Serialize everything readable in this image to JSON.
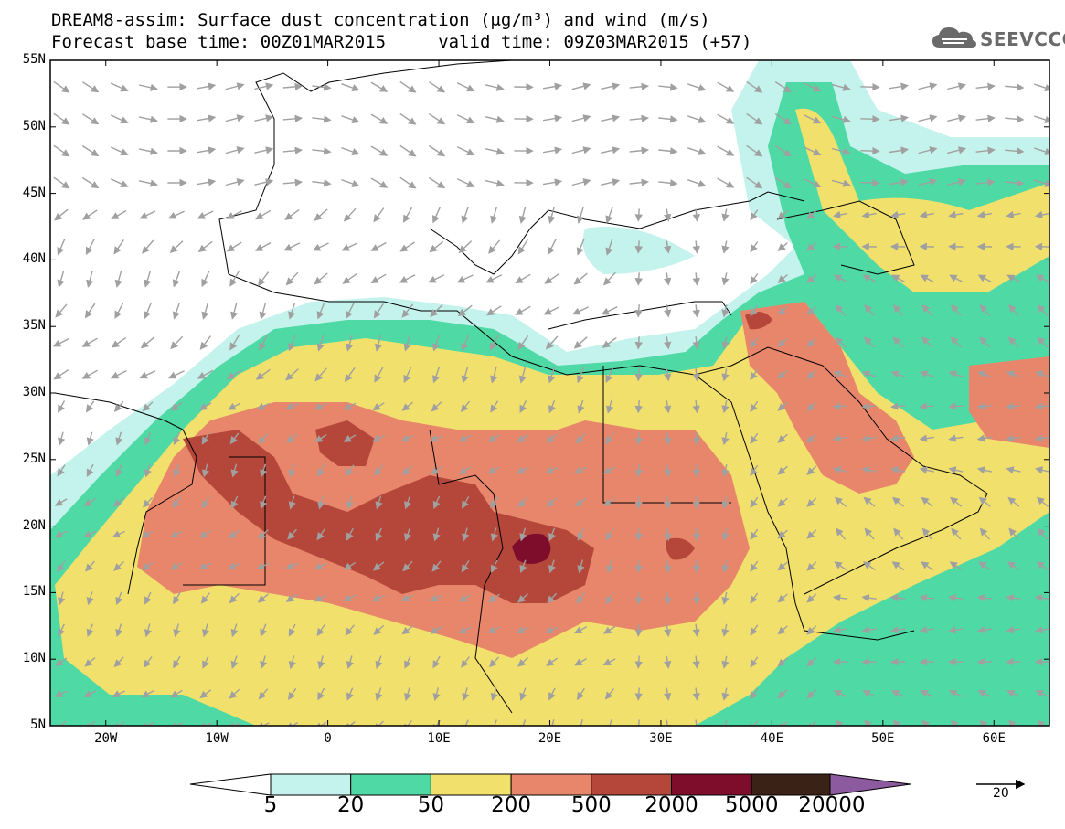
{
  "title_line1": "DREAM8-assim: Surface dust concentration (μg/m³) and wind (m/s)",
  "title_line2": "Forecast base time: 00Z01MAR2015     valid time: 09Z03MAR2015 (+57)",
  "logo_text": "SEEVCCC",
  "logo_icon": "cloud-icon",
  "lat_labels": [
    "55N",
    "50N",
    "45N",
    "40N",
    "35N",
    "30N",
    "25N",
    "20N",
    "15N",
    "10N",
    "5N"
  ],
  "lon_labels": [
    "20W",
    "10W",
    "0",
    "10E",
    "20E",
    "30E",
    "40E",
    "50E",
    "60E"
  ],
  "colorbar": {
    "labels": [
      "5",
      "20",
      "50",
      "200",
      "500",
      "2000",
      "5000",
      "20000"
    ],
    "colors": [
      "#c4f2ec",
      "#4fd9a5",
      "#f2e06c",
      "#e8866b",
      "#b5473a",
      "#7e0d2c",
      "#3a2216",
      "#8c5a9e"
    ],
    "left_extension_color": "#ffffff"
  },
  "wind_reference": {
    "value": "20"
  },
  "map_data": {
    "region": "North Africa, Europe and Middle East",
    "lon_range": [
      -25,
      65
    ],
    "lat_range": [
      5,
      55
    ],
    "variable": "Surface dust concentration",
    "wind_arrow_color": "#a0a0a0"
  }
}
